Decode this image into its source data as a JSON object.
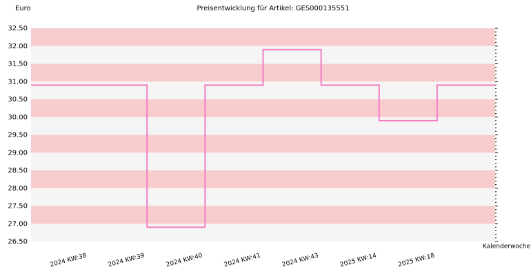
{
  "chart_data": {
    "type": "step",
    "title": "Preisentwicklung für Artikel: GES000135551",
    "y_label": "Euro",
    "x_label": "Kalenderwoche",
    "categories": [
      "2024 KW:38",
      "2024 KW:39",
      "2024 KW:40",
      "2024 KW:41",
      "2024 KW:43",
      "2025 KW:14",
      "2025 KW:18"
    ],
    "values": [
      30.9,
      26.9,
      30.9,
      31.9,
      30.9,
      29.9,
      30.9
    ],
    "color": "#f57cc4",
    "band_colors": [
      "#f8cccc",
      "#f5f5f5"
    ],
    "ylim": [
      26.5,
      32.5
    ],
    "yticks": [
      {
        "value": 26.5,
        "label": "26.50"
      },
      {
        "value": 27,
        "label": "27.00"
      },
      {
        "value": 27.5,
        "label": "27.50"
      },
      {
        "value": 28,
        "label": "28.00"
      },
      {
        "value": 28.5,
        "label": "28.50"
      },
      {
        "value": 29,
        "label": "29.00"
      },
      {
        "value": 29.5,
        "label": "29.50"
      },
      {
        "value": 30,
        "label": "30.00"
      },
      {
        "value": 30.5,
        "label": "30.50"
      },
      {
        "value": 31,
        "label": "31.00"
      },
      {
        "value": 31.5,
        "label": "31.50"
      },
      {
        "value": 32,
        "label": "32.00"
      },
      {
        "value": 32.5,
        "label": "32.50"
      }
    ]
  }
}
